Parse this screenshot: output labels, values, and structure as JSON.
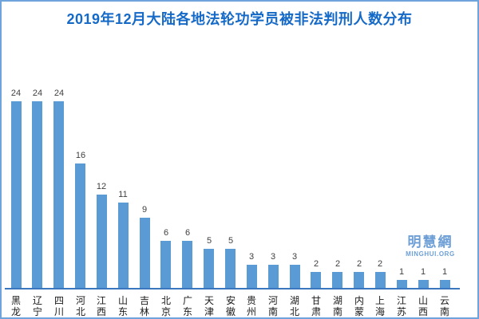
{
  "chart_data": {
    "type": "bar",
    "title": "2019年12月大陆各地法轮功学员被非法判刑人数分布",
    "categories": [
      "黑龙",
      "辽宁",
      "四川",
      "河北",
      "江西",
      "山东",
      "吉林",
      "北京",
      "广东",
      "天津",
      "安徽",
      "贵州",
      "河南",
      "湖北",
      "甘肃",
      "湖南",
      "内蒙",
      "上海",
      "江苏",
      "山西",
      "云南"
    ],
    "values": [
      24,
      24,
      24,
      16,
      12,
      11,
      9,
      6,
      6,
      5,
      5,
      3,
      3,
      3,
      2,
      2,
      2,
      2,
      1,
      1,
      1
    ],
    "xlabel": "",
    "ylabel": "",
    "ylim": [
      0,
      24
    ],
    "grid": false,
    "legend": "none",
    "value_labels_shown": true,
    "bar_color": "#5B9BD5",
    "axis_color": "#3A77BF",
    "title_color": "#1569C7",
    "value_label_color": "#404040",
    "category_label_color": "#1A1A1A"
  },
  "watermark": {
    "chinese": "明慧網",
    "english": "MINGHUI.ORG",
    "color": "#6D9FD6"
  },
  "frame": {
    "border_color": "#6FA3DC",
    "background_color": "#FFFFFF"
  }
}
